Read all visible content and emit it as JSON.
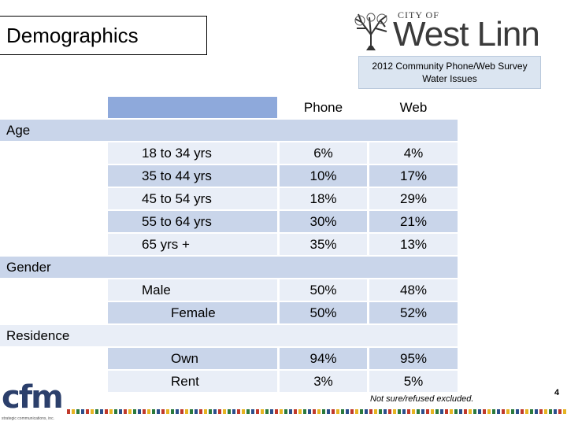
{
  "header": {
    "title": "Demographics",
    "logo_city": "CITY OF",
    "logo_name": "West Linn",
    "survey_line1": "2012 Community Phone/Web Survey",
    "survey_line2": "Water Issues"
  },
  "table": {
    "col_phone": "Phone",
    "col_web": "Web",
    "sections": [
      {
        "label": "Age",
        "rows": [
          {
            "label": "18 to 34 yrs",
            "phone": "6%",
            "web": "4%"
          },
          {
            "label": "35 to 44 yrs",
            "phone": "10%",
            "web": "17%"
          },
          {
            "label": "45 to 54 yrs",
            "phone": "18%",
            "web": "29%"
          },
          {
            "label": "55 to 64 yrs",
            "phone": "30%",
            "web": "21%"
          },
          {
            "label": "65 yrs +",
            "phone": "35%",
            "web": "13%"
          }
        ]
      },
      {
        "label": "Gender",
        "rows": [
          {
            "label": "Male",
            "phone": "50%",
            "web": "48%"
          },
          {
            "label": "Female",
            "phone": "50%",
            "web": "52%"
          }
        ]
      },
      {
        "label": "Residence",
        "rows": [
          {
            "label": "Own",
            "phone": "94%",
            "web": "95%"
          },
          {
            "label": "Rent",
            "phone": "3%",
            "web": "5%"
          }
        ]
      }
    ]
  },
  "footnote": "Not sure/refused excluded.",
  "page_number": "4",
  "footer_logo": {
    "name": "cfm",
    "tagline": "strategic communications, inc."
  },
  "colors": {
    "header_fill": "#8ea9db",
    "band_fill": "#c9d5ea",
    "light_fill": "#e9eef7",
    "survey_box": "#dbe5f1",
    "logo_text": "#3a3a3a",
    "cfm_blue": "#2b3f6b"
  }
}
